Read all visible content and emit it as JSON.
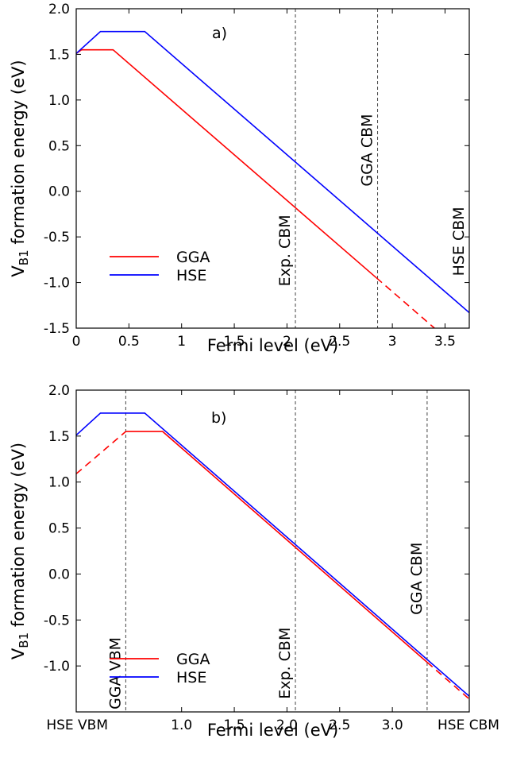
{
  "chart_data": [
    {
      "type": "line",
      "panel_label": "a)",
      "xlabel": "Fermi level (eV)",
      "ylabel_main": "V",
      "ylabel_sub": "B1",
      "ylabel_rest": " formation energy (eV)",
      "xlim": [
        0,
        3.73
      ],
      "ylim": [
        -1.5,
        2.0
      ],
      "xticks": [
        {
          "value": 0,
          "label": "0"
        },
        {
          "value": 0.5,
          "label": "0.5"
        },
        {
          "value": 1,
          "label": "1"
        },
        {
          "value": 1.5,
          "label": "1.5"
        },
        {
          "value": 2,
          "label": "2"
        },
        {
          "value": 2.5,
          "label": "2.5"
        },
        {
          "value": 3,
          "label": "3"
        },
        {
          "value": 3.5,
          "label": "3.5"
        }
      ],
      "yticks": [
        {
          "value": 2.0,
          "label": "2.0"
        },
        {
          "value": 1.5,
          "label": "1.5"
        },
        {
          "value": 1.0,
          "label": "1.0"
        },
        {
          "value": 0.5,
          "label": "0.5"
        },
        {
          "value": 0.0,
          "label": "0.0"
        },
        {
          "value": -0.5,
          "label": "-0.5"
        },
        {
          "value": -1.0,
          "label": "-1.0"
        },
        {
          "value": -1.5,
          "label": "-1.5"
        }
      ],
      "series": [
        {
          "name": "GGA",
          "color": "#ff0000",
          "segments": [
            {
              "style": "solid",
              "points": [
                [
                  0,
                  1.51
                ],
                [
                  0.05,
                  1.55
                ],
                [
                  0.35,
                  1.55
                ],
                [
                  2.85,
                  -0.95
                ]
              ]
            },
            {
              "style": "dashed",
              "points": [
                [
                  2.85,
                  -0.95
                ],
                [
                  3.4,
                  -1.5
                ]
              ]
            }
          ]
        },
        {
          "name": "HSE",
          "color": "#0000ff",
          "segments": [
            {
              "style": "solid",
              "points": [
                [
                  0,
                  1.51
                ],
                [
                  0.23,
                  1.75
                ],
                [
                  0.65,
                  1.75
                ],
                [
                  3.73,
                  -1.33
                ]
              ]
            }
          ]
        }
      ],
      "vlines": [
        {
          "x": 2.08,
          "label": "Exp. CBM",
          "label_y": -0.65
        },
        {
          "x": 2.86,
          "label": "GGA CBM",
          "label_y": 0.45
        },
        {
          "x": 3.73,
          "label": "HSE CBM",
          "label_y": -0.55
        }
      ],
      "legend": "lower-left"
    },
    {
      "type": "line",
      "panel_label": "b)",
      "xlabel": "Fermi level (eV)",
      "ylabel_main": "V",
      "ylabel_sub": "B1",
      "ylabel_rest": " formation energy (eV)",
      "xlim": [
        0,
        3.73
      ],
      "ylim": [
        -1.5,
        2.0
      ],
      "xticks": [
        {
          "value": 0,
          "label": "HSE VBM"
        },
        {
          "value": 1.0,
          "label": "1.0"
        },
        {
          "value": 1.5,
          "label": "1.5"
        },
        {
          "value": 2.0,
          "label": "2.0"
        },
        {
          "value": 2.5,
          "label": "2.5"
        },
        {
          "value": 3.0,
          "label": "3.0"
        },
        {
          "value": 3.73,
          "label": "HSE CBM"
        }
      ],
      "yticks": [
        {
          "value": 2.0,
          "label": "2.0"
        },
        {
          "value": 1.5,
          "label": "1.5"
        },
        {
          "value": 1.0,
          "label": "1.0"
        },
        {
          "value": 0.5,
          "label": "0.5"
        },
        {
          "value": 0.0,
          "label": "0.0"
        },
        {
          "value": -0.5,
          "label": "-0.5"
        },
        {
          "value": -1.0,
          "label": "-1.0"
        }
      ],
      "series": [
        {
          "name": "GGA",
          "color": "#ff0000",
          "segments": [
            {
              "style": "dashed",
              "points": [
                [
                  0,
                  1.09
                ],
                [
                  0.47,
                  1.55
                ]
              ]
            },
            {
              "style": "solid",
              "points": [
                [
                  0.47,
                  1.55
                ],
                [
                  0.82,
                  1.55
                ],
                [
                  3.33,
                  -0.96
                ]
              ]
            },
            {
              "style": "dashed",
              "points": [
                [
                  3.33,
                  -0.96
                ],
                [
                  3.73,
                  -1.36
                ]
              ]
            }
          ]
        },
        {
          "name": "HSE",
          "color": "#0000ff",
          "segments": [
            {
              "style": "solid",
              "points": [
                [
                  0,
                  1.51
                ],
                [
                  0.23,
                  1.75
                ],
                [
                  0.65,
                  1.75
                ],
                [
                  3.73,
                  -1.33
                ]
              ]
            }
          ]
        }
      ],
      "vlines": [
        {
          "x": 0.47,
          "label": "GGA VBM",
          "label_y": -1.08
        },
        {
          "x": 2.08,
          "label": "Exp. CBM",
          "label_y": -0.97
        },
        {
          "x": 3.33,
          "label": "GGA CBM",
          "label_y": -0.05
        }
      ],
      "legend": "lower-left"
    }
  ]
}
